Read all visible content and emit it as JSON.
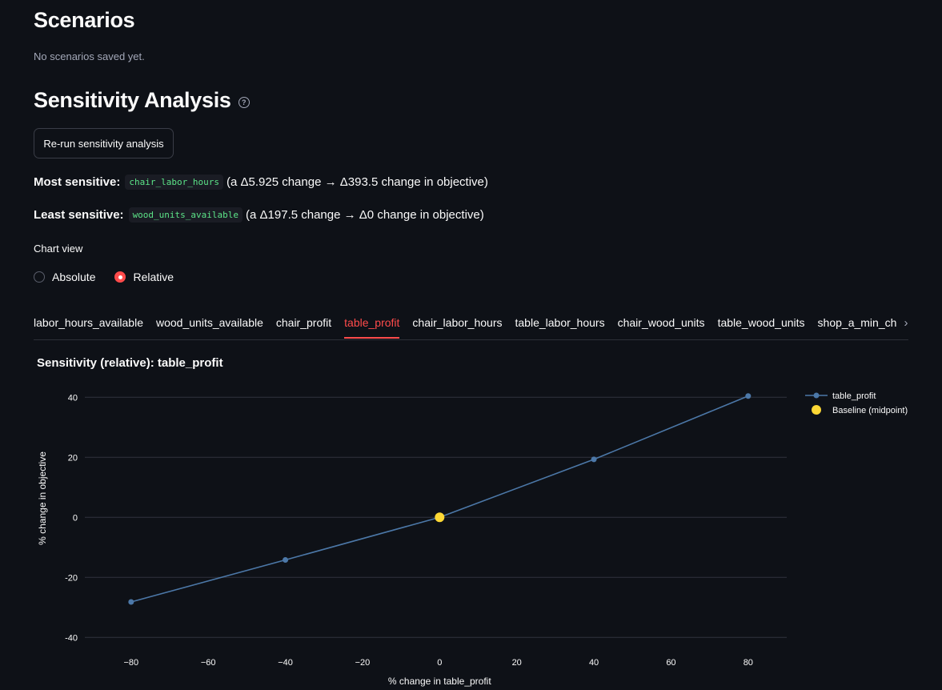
{
  "scenarios": {
    "heading": "Scenarios",
    "empty_text": "No scenarios saved yet."
  },
  "sensitivity": {
    "heading": "Sensitivity Analysis",
    "help_icon": "question-circle-icon",
    "rerun_button": "Re-run sensitivity analysis",
    "most": {
      "label": "Most sensitive:",
      "param": "chair_labor_hours",
      "detail": "(a Δ5.925 change → Δ393.5 change in objective)"
    },
    "least": {
      "label": "Least sensitive:",
      "param": "wood_units_available",
      "detail": "(a Δ197.5 change → Δ0 change in objective)"
    },
    "chart_view": {
      "label": "Chart view",
      "options": [
        "Absolute",
        "Relative"
      ],
      "selected": "Relative"
    },
    "tabs": [
      "labor_hours_available",
      "wood_units_available",
      "chair_profit",
      "table_profit",
      "chair_labor_hours",
      "table_labor_hours",
      "chair_wood_units",
      "table_wood_units",
      "shop_a_min_chairs",
      "sh"
    ],
    "active_tab": "table_profit",
    "tab_scroll_icon": "chevron-right-icon"
  },
  "colors": {
    "background": "#0e1117",
    "accent": "#ff4b4b",
    "line": "#4c78a8",
    "baseline": "#fdd835"
  },
  "chart_data": {
    "type": "line",
    "title": "Sensitivity (relative): table_profit",
    "xlabel": "% change in table_profit",
    "ylabel": "% change in objective",
    "xlim": [
      -92,
      90
    ],
    "ylim": [
      -45,
      47
    ],
    "xticks": [
      -80,
      -60,
      -40,
      -20,
      0,
      20,
      40,
      60,
      80
    ],
    "yticks": [
      -40,
      -20,
      0,
      20,
      40
    ],
    "grid": true,
    "legend_position": "top-right",
    "series": [
      {
        "name": "table_profit",
        "x": [
          -80,
          -40,
          0,
          40,
          80
        ],
        "y": [
          -28.2,
          -14.2,
          0,
          19.3,
          40.4
        ]
      }
    ],
    "baseline": {
      "name": "Baseline (midpoint)",
      "x": 0,
      "y": 0
    }
  }
}
